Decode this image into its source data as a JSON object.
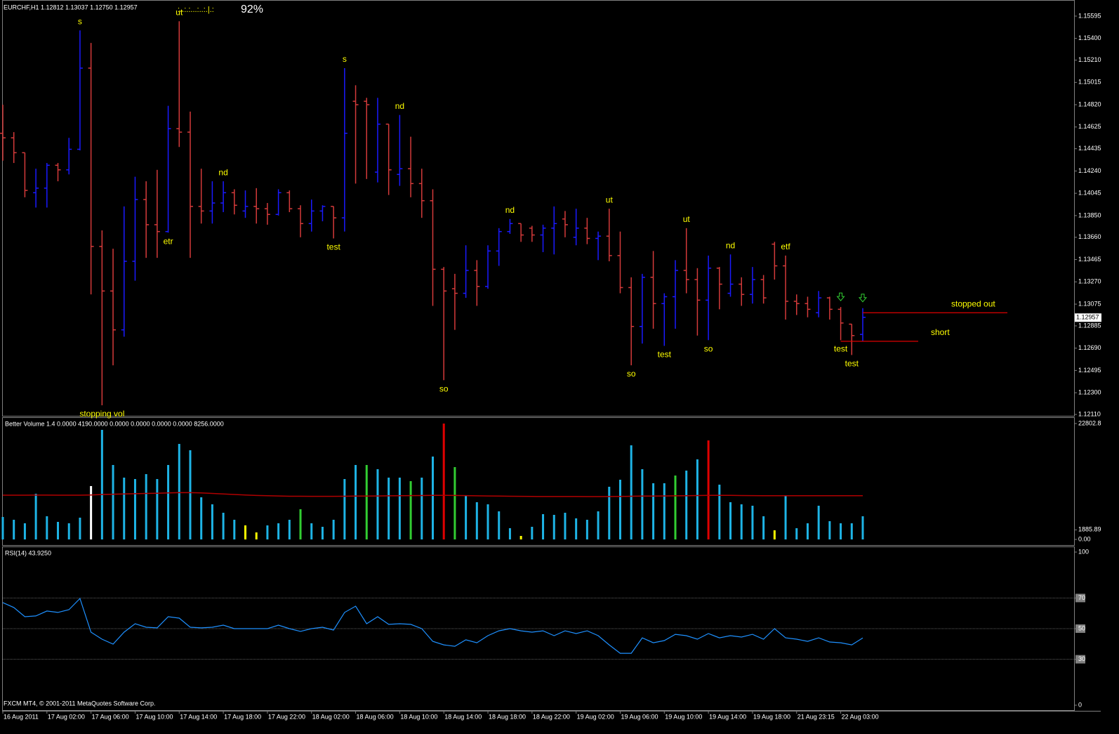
{
  "chart_data": [
    {
      "type": "ohlc",
      "title": "EURCHF,H1  1.12812 1.13037 1.12750 1.12957",
      "progress_dots": ".:..:.:...:..:.|.:",
      "progress": "92%",
      "up_color": "#1a1aff",
      "down_color": "#d43a3a",
      "categories": [
        "16 Aug 2011",
        null,
        null,
        null,
        "17 Aug 02:00",
        null,
        null,
        null,
        "17 Aug 06:00",
        null,
        null,
        null,
        "17 Aug 10:00",
        null,
        null,
        null,
        "17 Aug 14:00",
        null,
        null,
        null,
        "17 Aug 18:00",
        null,
        null,
        null,
        "17 Aug 22:00",
        null,
        null,
        null,
        "18 Aug 02:00",
        null,
        null,
        null,
        "18 Aug 06:00",
        null,
        null,
        null,
        "18 Aug 10:00",
        null,
        null,
        null,
        "18 Aug 14:00",
        null,
        null,
        null,
        "18 Aug 18:00",
        null,
        null,
        null,
        "18 Aug 22:00",
        null,
        null,
        null,
        "19 Aug 02:00",
        null,
        null,
        null,
        "19 Aug 06:00",
        null,
        null,
        null,
        "19 Aug 10:00",
        null,
        null,
        null,
        "19 Aug 14:00",
        null,
        null,
        null,
        "19 Aug 18:00",
        null,
        null,
        null,
        "21 Aug 23:15",
        null,
        null,
        null,
        "22 Aug 03:00",
        null,
        null
      ],
      "open": [
        1.1457,
        1.1453,
        1.144,
        1.1405,
        1.1409,
        1.1429,
        1.1425,
        1.1443,
        1.1514,
        1.1358,
        1.1319,
        1.1285,
        1.1345,
        1.1399,
        1.1377,
        1.1371,
        1.1461,
        1.1458,
        1.1393,
        1.1389,
        1.1396,
        1.1405,
        1.1389,
        1.1393,
        1.1391,
        1.1386,
        1.1405,
        1.1391,
        1.1378,
        1.1389,
        1.1393,
        1.1383,
        1.1485,
        1.1485,
        1.1423,
        1.1465,
        1.1421,
        1.1426,
        1.1413,
        1.1398,
        1.1338,
        1.1321,
        1.1317,
        1.1337,
        1.1323,
        1.1354,
        1.1371,
        1.1378,
        1.1374,
        1.1368,
        1.1374,
        1.1382,
        1.1366,
        1.1374,
        1.1365,
        1.1367,
        1.135,
        1.1322,
        1.1288,
        1.1331,
        1.1308,
        1.1314,
        1.1337,
        1.1329,
        1.1311,
        1.1339,
        1.1317,
        1.1325,
        1.1316,
        1.1329,
        1.136,
        1.1341,
        1.131,
        1.1308,
        1.13,
        1.1313,
        1.1303,
        1.129,
        1.1281
      ],
      "high": [
        1.1482,
        1.1458,
        1.144,
        1.1426,
        1.1431,
        1.1431,
        1.1453,
        1.1547,
        1.1536,
        1.1372,
        1.1356,
        1.1393,
        1.1419,
        1.1415,
        1.1425,
        1.1481,
        1.1555,
        1.1476,
        1.1426,
        1.1415,
        1.1415,
        1.1408,
        1.1407,
        1.1409,
        1.1396,
        1.1408,
        1.1407,
        1.1394,
        1.1399,
        1.1394,
        1.1393,
        1.1514,
        1.1499,
        1.1488,
        1.1488,
        1.1465,
        1.1473,
        1.1454,
        1.1426,
        1.1408,
        1.134,
        1.1334,
        1.1359,
        1.1346,
        1.1359,
        1.1374,
        1.1382,
        1.1378,
        1.1376,
        1.1377,
        1.1393,
        1.1389,
        1.1391,
        1.1383,
        1.1371,
        1.1391,
        1.1371,
        1.1331,
        1.1334,
        1.1354,
        1.1317,
        1.1346,
        1.1374,
        1.1339,
        1.135,
        1.134,
        1.1351,
        1.1331,
        1.134,
        1.1333,
        1.1362,
        1.135,
        1.1316,
        1.1314,
        1.1319,
        1.1314,
        1.1305,
        1.129,
        1.1304
      ],
      "low": [
        1.1433,
        1.1431,
        1.1401,
        1.1392,
        1.1392,
        1.1415,
        1.1421,
        1.1442,
        1.1316,
        1.1219,
        1.1254,
        1.1279,
        1.1328,
        1.1348,
        1.1348,
        1.137,
        1.1445,
        1.1348,
        1.1378,
        1.1378,
        1.1388,
        1.1386,
        1.1383,
        1.1378,
        1.1377,
        1.1385,
        1.1388,
        1.1366,
        1.1371,
        1.138,
        1.1365,
        1.1371,
        1.1413,
        1.1417,
        1.1414,
        1.1403,
        1.1411,
        1.1401,
        1.1383,
        1.1306,
        1.1241,
        1.1285,
        1.1313,
        1.1306,
        1.1321,
        1.1341,
        1.1369,
        1.1362,
        1.1362,
        1.1353,
        1.1351,
        1.1366,
        1.1359,
        1.136,
        1.1346,
        1.1345,
        1.1317,
        1.1254,
        1.1273,
        1.1286,
        1.1271,
        1.1286,
        1.1317,
        1.128,
        1.1276,
        1.1303,
        1.1314,
        1.1306,
        1.1308,
        1.1308,
        1.1329,
        1.1294,
        1.1298,
        1.1296,
        1.1296,
        1.1294,
        1.1276,
        1.1263,
        1.1275
      ],
      "close": [
        1.1453,
        1.144,
        1.1407,
        1.1409,
        1.1429,
        1.1425,
        1.1443,
        1.1514,
        1.1358,
        1.1319,
        1.1285,
        1.1345,
        1.1399,
        1.1377,
        1.1371,
        1.1461,
        1.1458,
        1.1393,
        1.1389,
        1.1396,
        1.1405,
        1.1394,
        1.1393,
        1.1391,
        1.1386,
        1.1405,
        1.1391,
        1.1378,
        1.1389,
        1.1393,
        1.1383,
        1.1457,
        1.1482,
        1.1482,
        1.1465,
        1.1425,
        1.1426,
        1.1413,
        1.1398,
        1.1338,
        1.1319,
        1.1317,
        1.1337,
        1.1323,
        1.1354,
        1.1371,
        1.1378,
        1.1368,
        1.1368,
        1.1374,
        1.1378,
        1.1377,
        1.1374,
        1.1365,
        1.1367,
        1.135,
        1.1322,
        1.1288,
        1.1331,
        1.1308,
        1.1314,
        1.1337,
        1.1329,
        1.1311,
        1.1339,
        1.1325,
        1.1325,
        1.1316,
        1.1329,
        1.1313,
        1.1341,
        1.131,
        1.1308,
        1.1303,
        1.1313,
        1.1303,
        1.1291,
        1.128,
        1.1296
      ],
      "ylim": [
        1.12098,
        1.15736
      ],
      "yticks": [
        {
          "value": 1.15595,
          "label": "1.15595"
        },
        {
          "value": 1.154,
          "label": "1.15400"
        },
        {
          "value": 1.1521,
          "label": "1.15210"
        },
        {
          "value": 1.15015,
          "label": "1.15015"
        },
        {
          "value": 1.1482,
          "label": "1.14820"
        },
        {
          "value": 1.14625,
          "label": "1.14625"
        },
        {
          "value": 1.14435,
          "label": "1.14435"
        },
        {
          "value": 1.1424,
          "label": "1.14240"
        },
        {
          "value": 1.14045,
          "label": "1.14045"
        },
        {
          "value": 1.1385,
          "label": "1.13850"
        },
        {
          "value": 1.1366,
          "label": "1.13660"
        },
        {
          "value": 1.13465,
          "label": "1.13465"
        },
        {
          "value": 1.1327,
          "label": "1.13270"
        },
        {
          "value": 1.13075,
          "label": "1.13075"
        },
        {
          "value": 1.12885,
          "label": "1.12885"
        },
        {
          "value": 1.1269,
          "label": "1.12690"
        },
        {
          "value": 1.12495,
          "label": "1.12495"
        },
        {
          "value": 1.123,
          "label": "1.12300"
        },
        {
          "value": 1.1211,
          "label": "1.12110"
        }
      ],
      "last_price": 1.12957,
      "annotation_color": "#ffff00",
      "annotations": [
        {
          "text": "s",
          "bar": 7,
          "side": "above"
        },
        {
          "text": "ut",
          "bar": 16,
          "side": "above"
        },
        {
          "text": "stopping vol",
          "bar": 9,
          "side": "below"
        },
        {
          "text": "etr",
          "bar": 15,
          "side": "below"
        },
        {
          "text": "nd",
          "bar": 20,
          "side": "above"
        },
        {
          "text": "s",
          "bar": 31,
          "side": "above"
        },
        {
          "text": "nd",
          "bar": 36,
          "side": "above"
        },
        {
          "text": "test",
          "bar": 30,
          "side": "below"
        },
        {
          "text": "so",
          "bar": 40,
          "side": "below"
        },
        {
          "text": "nd",
          "bar": 46,
          "side": "above"
        },
        {
          "text": "ut",
          "bar": 55,
          "side": "above"
        },
        {
          "text": "so",
          "bar": 57,
          "side": "below"
        },
        {
          "text": "ut",
          "bar": 62,
          "side": "above"
        },
        {
          "text": "test",
          "bar": 60,
          "side": "below"
        },
        {
          "text": "so",
          "bar": 64,
          "side": "below"
        },
        {
          "text": "nd",
          "bar": 66,
          "side": "above"
        },
        {
          "text": "etf",
          "bar": 71,
          "side": "above"
        },
        {
          "text": "test",
          "bar": 76,
          "side": "below"
        },
        {
          "text": "test",
          "bar": 77,
          "side": "below"
        }
      ],
      "arrows": [
        76,
        78
      ],
      "arrow_color": "#32cd32",
      "levels": [
        {
          "text": "stopped out",
          "price": 1.13,
          "bar": 78,
          "color": "#e00000"
        },
        {
          "text": "short",
          "price": 1.1275,
          "bar": 76,
          "color": "#e00000"
        }
      ]
    },
    {
      "type": "bar",
      "title": "Better Volume 1.4 0.0000 4190.0000 0.0000 0.0000 0.0000 0.0000 8256.0000",
      "values": [
        4422,
        3870,
        3179,
        8983,
        4561,
        3455,
        3179,
        4284,
        10503,
        21559,
        14649,
        12162,
        11885,
        12853,
        11885,
        14649,
        18795,
        17551,
        8292,
        6910,
        5252,
        3870,
        2764,
        1382,
        2764,
        3179,
        3870,
        5943,
        3179,
        2488,
        3870,
        11885,
        14649,
        14649,
        13820,
        12162,
        12162,
        11471,
        12162,
        16308,
        22800,
        14235,
        8707,
        7325,
        6910,
        5528,
        2211,
        691,
        2488,
        4975,
        4837,
        5252,
        4146,
        3870,
        5528,
        10365,
        11747,
        18519,
        13820,
        11056,
        11056,
        12576,
        13544,
        15755,
        19486,
        10780,
        7325,
        6910,
        6634,
        4561,
        1797,
        8568,
        2211,
        3179,
        6634,
        3593,
        3179,
        3179,
        4561
      ],
      "colors": [
        "#1eb4e6",
        "#1eb4e6",
        "#1eb4e6",
        "#1eb4e6",
        "#1eb4e6",
        "#1eb4e6",
        "#1eb4e6",
        "#1eb4e6",
        "#ffffff",
        "#1eb4e6",
        "#1eb4e6",
        "#1eb4e6",
        "#1eb4e6",
        "#1eb4e6",
        "#1eb4e6",
        "#1eb4e6",
        "#1eb4e6",
        "#1eb4e6",
        "#1eb4e6",
        "#1eb4e6",
        "#1eb4e6",
        "#1eb4e6",
        "#ffff00",
        "#ffff00",
        "#1eb4e6",
        "#1eb4e6",
        "#1eb4e6",
        "#32cd32",
        "#1eb4e6",
        "#1eb4e6",
        "#1eb4e6",
        "#1eb4e6",
        "#1eb4e6",
        "#32cd32",
        "#1eb4e6",
        "#1eb4e6",
        "#1eb4e6",
        "#32cd32",
        "#1eb4e6",
        "#1eb4e6",
        "#e00000",
        "#32cd32",
        "#1eb4e6",
        "#1eb4e6",
        "#1eb4e6",
        "#1eb4e6",
        "#1eb4e6",
        "#ffff00",
        "#1eb4e6",
        "#1eb4e6",
        "#1eb4e6",
        "#1eb4e6",
        "#1eb4e6",
        "#1eb4e6",
        "#1eb4e6",
        "#1eb4e6",
        "#1eb4e6",
        "#1eb4e6",
        "#1eb4e6",
        "#1eb4e6",
        "#1eb4e6",
        "#32cd32",
        "#1eb4e6",
        "#1eb4e6",
        "#e00000",
        "#1eb4e6",
        "#1eb4e6",
        "#1eb4e6",
        "#1eb4e6",
        "#1eb4e6",
        "#ffff00",
        "#1eb4e6",
        "#1eb4e6",
        "#1eb4e6",
        "#1eb4e6",
        "#1eb4e6",
        "#1eb4e6",
        "#1eb4e6",
        "#1eb4e6"
      ],
      "ma_values": [
        8700,
        8700,
        8710,
        8720,
        8720,
        8710,
        8700,
        8700,
        8750,
        8850,
        8900,
        8950,
        9000,
        9050,
        9100,
        9150,
        9200,
        9200,
        9150,
        9050,
        8950,
        8850,
        8750,
        8650,
        8600,
        8550,
        8500,
        8500,
        8480,
        8480,
        8480,
        8500,
        8520,
        8540,
        8560,
        8580,
        8600,
        8620,
        8640,
        8660,
        8680,
        8650,
        8620,
        8580,
        8550,
        8520,
        8500,
        8480,
        8460,
        8450,
        8450,
        8440,
        8440,
        8430,
        8430,
        8440,
        8460,
        8500,
        8520,
        8540,
        8560,
        8580,
        8600,
        8640,
        8680,
        8680,
        8660,
        8640,
        8620,
        8600,
        8600,
        8600,
        8600,
        8600,
        8600,
        8600,
        8600,
        8600,
        8600
      ],
      "ma_color": "#b00000",
      "ylim": [
        0,
        22802.8
      ],
      "yticks": [
        22802.8,
        {
          "value": 0,
          "label": "0.00"
        },
        {
          "value": 1885.89,
          "label": "1885.89"
        }
      ]
    },
    {
      "type": "line",
      "title": "RSI(14) 43.9250",
      "color": "#1e90ff",
      "values": [
        67.0,
        63.8,
        57.8,
        58.3,
        61.5,
        60.6,
        62.4,
        69.7,
        47.7,
        43.1,
        39.9,
        47.7,
        53.2,
        50.9,
        50.5,
        57.8,
        56.9,
        50.9,
        50.5,
        50.9,
        52.3,
        50.0,
        50.0,
        50.0,
        50.0,
        52.3,
        50.0,
        48.2,
        50.0,
        50.9,
        49.1,
        60.6,
        64.7,
        53.2,
        57.8,
        52.8,
        53.2,
        52.8,
        50.0,
        41.7,
        39.4,
        38.5,
        42.7,
        40.8,
        45.4,
        48.6,
        50.0,
        48.6,
        47.7,
        48.6,
        45.4,
        48.6,
        46.8,
        48.6,
        45.4,
        39.4,
        33.9,
        33.9,
        44.0,
        40.8,
        42.2,
        46.3,
        45.4,
        43.1,
        46.8,
        44.0,
        45.4,
        44.5,
        46.3,
        43.1,
        50.0,
        44.0,
        43.1,
        41.7,
        44.0,
        41.3,
        40.8,
        39.4,
        43.9
      ],
      "ylim": [
        0,
        100
      ],
      "yticks": [
        100,
        70,
        50,
        30,
        0
      ]
    }
  ],
  "footer": "FXCM MT4, © 2001-2011 MetaQuotes Software Corp."
}
